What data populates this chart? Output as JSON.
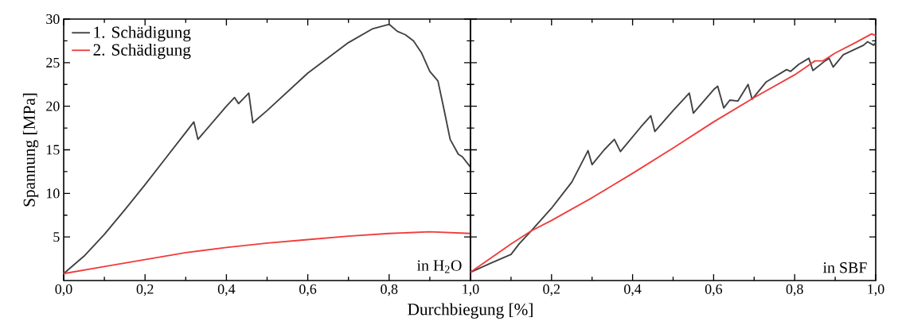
{
  "chart_data": [
    {
      "type": "line",
      "xlabel": "Durchbiegung [%]",
      "ylabel": "Spannung [MPa]",
      "legend": "top left",
      "xlim": [
        0,
        1
      ],
      "ylim": [
        0,
        30
      ],
      "xticks": [
        {
          "value": 0,
          "label": "0,0"
        },
        {
          "value": 0.2,
          "label": "0,2"
        },
        {
          "value": 0.4,
          "label": "0,4"
        },
        {
          "value": 0.6,
          "label": "0,6"
        },
        {
          "value": 0.8,
          "label": "0,8"
        },
        {
          "value": 1,
          "label": "1,0"
        }
      ],
      "yticks": [
        5,
        10,
        15,
        20,
        25,
        30
      ],
      "annotations": [
        "in H$_{2}$O"
      ],
      "series": [
        {
          "name": "1. Schädigung",
          "color": "#404040",
          "x": [
            0,
            0.05,
            0.1,
            0.15,
            0.2,
            0.25,
            0.3,
            0.32,
            0.33,
            0.4,
            0.42,
            0.43,
            0.455,
            0.465,
            0.5,
            0.6,
            0.7,
            0.76,
            0.8,
            0.82,
            0.84,
            0.86,
            0.88,
            0.9,
            0.92,
            0.935,
            0.95,
            0.97,
            0.98,
            1.0
          ],
          "values": [
            0.8,
            2.8,
            5.3,
            8.1,
            11.0,
            14.0,
            17.0,
            18.2,
            16.2,
            20.0,
            21.0,
            20.3,
            21.5,
            18.1,
            19.5,
            23.8,
            27.3,
            28.9,
            29.4,
            28.6,
            28.2,
            27.5,
            26.1,
            24.0,
            22.9,
            19.6,
            16.2,
            14.5,
            14.2,
            13.0
          ]
        },
        {
          "name": "2. Schädigung",
          "color": "#f03c3c",
          "x": [
            0,
            0.1,
            0.2,
            0.3,
            0.4,
            0.5,
            0.6,
            0.7,
            0.8,
            0.9,
            1.0
          ],
          "values": [
            0.8,
            1.6,
            2.4,
            3.2,
            3.8,
            4.3,
            4.7,
            5.1,
            5.4,
            5.6,
            5.4
          ]
        }
      ]
    },
    {
      "type": "line",
      "tick_labels": "x",
      "xlim": [
        0,
        1
      ],
      "ylim": [
        0,
        30
      ],
      "xticks": [
        {
          "value": 0,
          "label": null
        },
        {
          "value": 0.2,
          "label": "0,2"
        },
        {
          "value": 0.4,
          "label": "0,4"
        },
        {
          "value": 0.6,
          "label": "0,6"
        },
        {
          "value": 0.8,
          "label": "0,8"
        },
        {
          "value": 1,
          "label": "1,0"
        }
      ],
      "yticks": [
        5,
        10,
        15,
        20,
        25,
        30
      ],
      "annotations": [
        "in SBF"
      ],
      "series": [
        {
          "color": "#404040",
          "x": [
            0,
            0.05,
            0.1,
            0.12,
            0.15,
            0.2,
            0.25,
            0.29,
            0.3,
            0.33,
            0.355,
            0.37,
            0.42,
            0.445,
            0.455,
            0.5,
            0.54,
            0.55,
            0.6,
            0.61,
            0.625,
            0.64,
            0.66,
            0.685,
            0.695,
            0.73,
            0.78,
            0.79,
            0.81,
            0.835,
            0.845,
            0.875,
            0.885,
            0.895,
            0.92,
            0.97,
            0.98,
            0.995,
            1.0
          ],
          "values": [
            0.95,
            2.0,
            3.0,
            4.2,
            5.7,
            8.3,
            11.3,
            14.9,
            13.3,
            15.0,
            16.2,
            14.8,
            17.6,
            18.9,
            17.1,
            19.5,
            21.5,
            19.2,
            21.9,
            22.3,
            19.8,
            20.7,
            20.6,
            22.5,
            20.8,
            22.8,
            24.2,
            24.0,
            24.8,
            25.5,
            24.1,
            25.2,
            25.5,
            24.5,
            25.9,
            27.0,
            27.4,
            27.0,
            27.3
          ]
        },
        {
          "color": "#f03c3c",
          "x": [
            0,
            0.1,
            0.15,
            0.2,
            0.3,
            0.4,
            0.5,
            0.6,
            0.7,
            0.8,
            0.85,
            0.87,
            0.9,
            0.95,
            0.99,
            1.0
          ],
          "values": [
            0.95,
            4.2,
            5.7,
            6.9,
            9.5,
            12.3,
            15.2,
            18.2,
            21.0,
            23.6,
            25.2,
            25.2,
            26.1,
            27.3,
            28.3,
            28.1
          ]
        }
      ]
    }
  ]
}
